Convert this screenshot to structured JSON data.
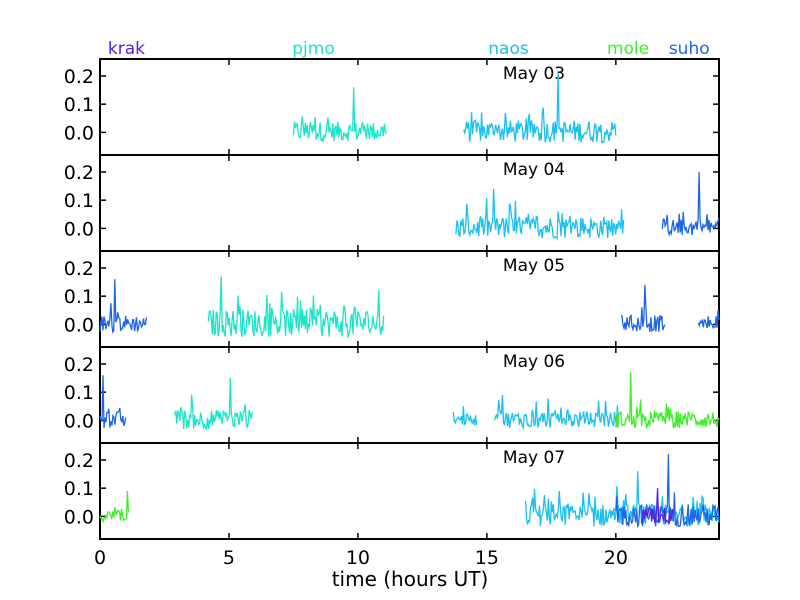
{
  "chart_data": {
    "type": "line",
    "xlabel": "time (hours UT)",
    "xlim": [
      0,
      24
    ],
    "ylim": [
      -0.08,
      0.26
    ],
    "xticks": [
      0,
      5,
      10,
      15,
      20
    ],
    "xtick_labels": [
      "0",
      "5",
      "10",
      "15",
      "20"
    ],
    "yticks": [
      0.0,
      0.1,
      0.2
    ],
    "ytick_labels": [
      "0.0",
      "0.1",
      "0.2"
    ],
    "stations": [
      {
        "name": "krak",
        "color": "#5a1de8"
      },
      {
        "name": "pjmo",
        "color": "#19e6c8"
      },
      {
        "name": "naos",
        "color": "#1ac0f0"
      },
      {
        "name": "mole",
        "color": "#3cf028"
      },
      {
        "name": "suho",
        "color": "#1e64e6"
      }
    ],
    "panels": [
      {
        "label": "May 03",
        "segments": [
          {
            "station": "pjmo",
            "start": 7.5,
            "end": 11.1,
            "peak": 0.16,
            "amp": 0.07
          },
          {
            "station": "naos",
            "start": 14.1,
            "end": 20.0,
            "peak": 0.21,
            "amp": 0.08
          }
        ]
      },
      {
        "label": "May 04",
        "segments": [
          {
            "station": "naos",
            "start": 13.8,
            "end": 20.3,
            "peak": 0.14,
            "amp": 0.08
          },
          {
            "station": "suho",
            "start": 21.8,
            "end": 24.0,
            "peak": 0.2,
            "amp": 0.06
          }
        ]
      },
      {
        "label": "May 05",
        "segments": [
          {
            "station": "suho",
            "start": 0.0,
            "end": 1.8,
            "peak": 0.16,
            "amp": 0.06
          },
          {
            "station": "pjmo",
            "start": 4.2,
            "end": 11.0,
            "peak": 0.17,
            "amp": 0.1
          },
          {
            "station": "suho",
            "start": 20.2,
            "end": 21.9,
            "peak": 0.14,
            "amp": 0.06
          },
          {
            "station": "suho",
            "start": 23.2,
            "end": 24.0,
            "peak": 0.05,
            "amp": 0.03
          }
        ]
      },
      {
        "label": "May 06",
        "segments": [
          {
            "station": "suho",
            "start": 0.0,
            "end": 1.0,
            "peak": 0.16,
            "amp": 0.06
          },
          {
            "station": "pjmo",
            "start": 2.9,
            "end": 5.9,
            "peak": 0.15,
            "amp": 0.07
          },
          {
            "station": "naos",
            "start": 13.7,
            "end": 14.6,
            "peak": 0.05,
            "amp": 0.04
          },
          {
            "station": "naos",
            "start": 15.3,
            "end": 20.1,
            "peak": 0.09,
            "amp": 0.06
          },
          {
            "station": "mole",
            "start": 20.0,
            "end": 24.0,
            "peak": 0.17,
            "amp": 0.06
          }
        ]
      },
      {
        "label": "May 07",
        "segments": [
          {
            "station": "mole",
            "start": 0.0,
            "end": 1.1,
            "peak": 0.09,
            "amp": 0.04
          },
          {
            "station": "naos",
            "start": 16.5,
            "end": 24.0,
            "peak": 0.16,
            "amp": 0.08
          },
          {
            "station": "suho",
            "start": 20.0,
            "end": 24.0,
            "peak": 0.22,
            "amp": 0.08
          },
          {
            "station": "krak",
            "start": 21.0,
            "end": 22.2,
            "peak": 0.1,
            "amp": 0.06
          }
        ]
      }
    ]
  }
}
